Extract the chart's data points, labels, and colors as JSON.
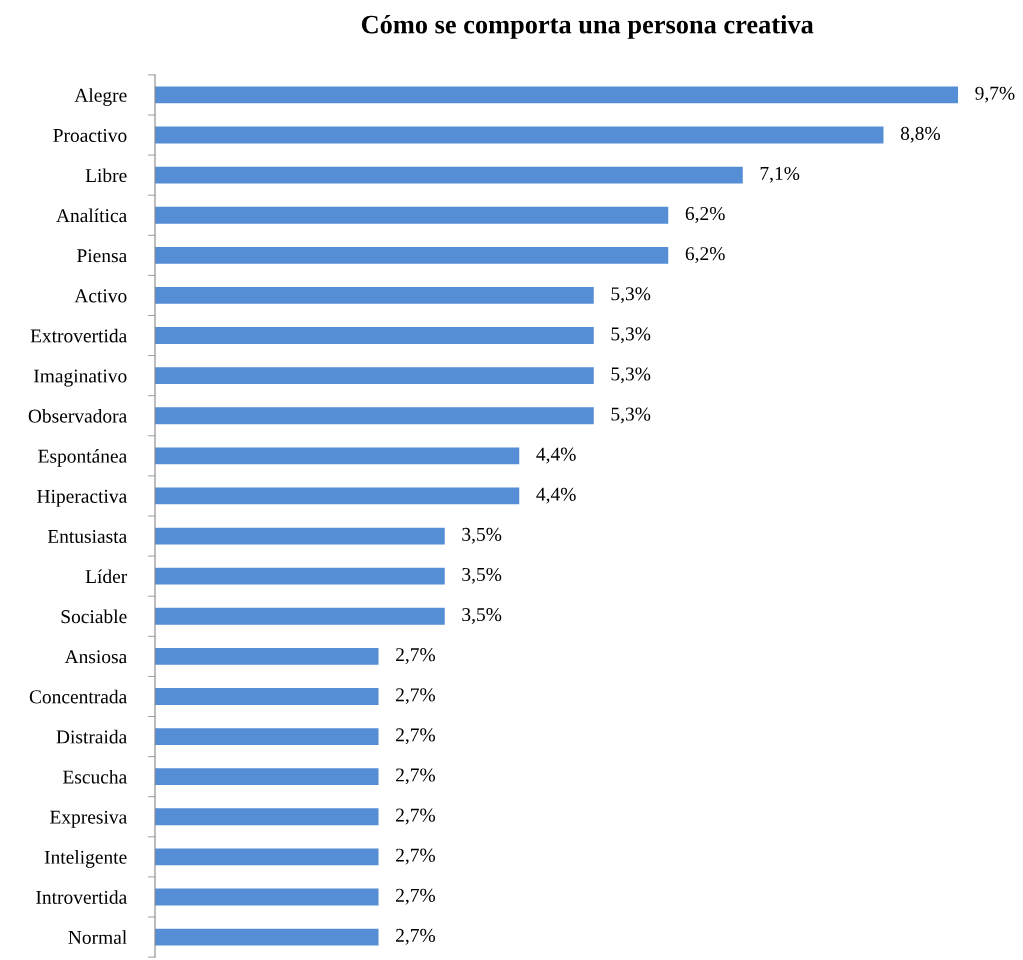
{
  "chart_data": {
    "type": "bar",
    "orientation": "horizontal",
    "title": "Cómo se comporta una persona creativa",
    "categories": [
      "Alegre",
      "Proactivo",
      "Libre",
      "Analítica",
      "Piensa",
      "Activo",
      "Extrovertida",
      "Imaginativo",
      "Observadora",
      "Espontánea",
      "Hiperactiva",
      "Entusiasta",
      "Líder",
      "Sociable",
      "Ansiosa",
      "Concentrada",
      "Distraida",
      "Escucha",
      "Expresiva",
      "Inteligente",
      "Introvertida",
      "Normal"
    ],
    "values": [
      9.7,
      8.8,
      7.1,
      6.2,
      6.2,
      5.3,
      5.3,
      5.3,
      5.3,
      4.4,
      4.4,
      3.5,
      3.5,
      3.5,
      2.7,
      2.7,
      2.7,
      2.7,
      2.7,
      2.7,
      2.7,
      2.7
    ],
    "value_labels": [
      "9,7%",
      "8,8%",
      "7,1%",
      "6,2%",
      "6,2%",
      "5,3%",
      "5,3%",
      "5,3%",
      "5,3%",
      "4,4%",
      "4,4%",
      "3,5%",
      "3,5%",
      "3,5%",
      "2,7%",
      "2,7%",
      "2,7%",
      "2,7%",
      "2,7%",
      "2,7%",
      "2,7%",
      "2,7%"
    ],
    "color": "#558ed5",
    "tick_labels": "y",
    "grid": false,
    "legend": false
  }
}
